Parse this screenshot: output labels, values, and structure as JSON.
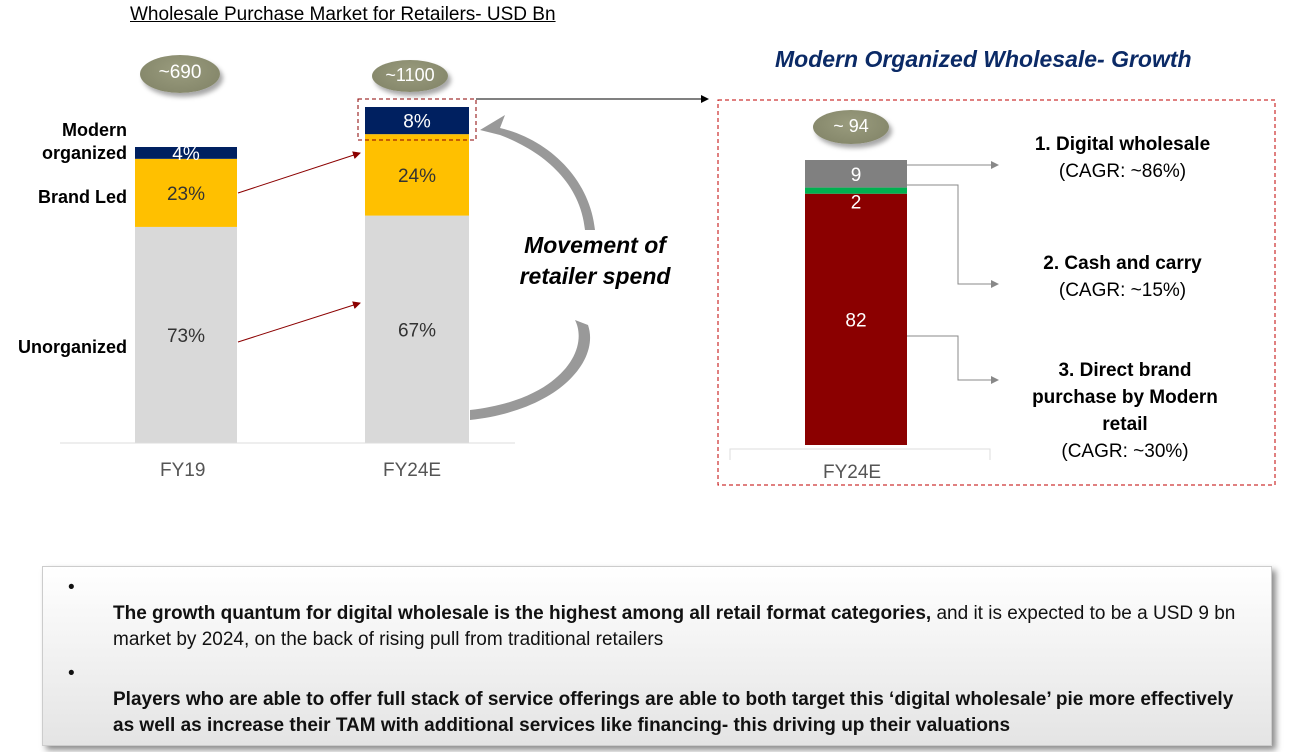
{
  "chart_data": [
    {
      "type": "bar",
      "stacked": true,
      "title": "Wholesale Purchase Market for Retailers- USD Bn",
      "categories": [
        "FY19",
        "FY24E"
      ],
      "totals": [
        "~690",
        "~1100"
      ],
      "series": [
        {
          "name": "Unorganized",
          "values": [
            73,
            67
          ],
          "labels": [
            "73%",
            "67%"
          ],
          "color": "#d9d9d9"
        },
        {
          "name": "Brand Led",
          "values": [
            23,
            24
          ],
          "labels": [
            "23%",
            "24%"
          ],
          "color": "#ffc000"
        },
        {
          "name": "Modern organized",
          "values": [
            4,
            8
          ],
          "labels": [
            "4%",
            "8%"
          ],
          "color": "#002060"
        }
      ],
      "series_labels": [
        "Modern organized",
        "Brand Led",
        "Unorganized"
      ],
      "annotation": "Movement of retailer spend"
    },
    {
      "type": "bar",
      "stacked": true,
      "title": "Modern Organized Wholesale- Growth",
      "categories": [
        "FY24E"
      ],
      "totals": [
        "~ 94"
      ],
      "series": [
        {
          "name": "Direct brand purchase by Modern retail",
          "values": [
            82
          ],
          "color": "#8b0000"
        },
        {
          "name": "Cash and carry",
          "values": [
            2
          ],
          "color": "#00b050"
        },
        {
          "name": "Digital wholesale",
          "values": [
            9
          ],
          "color": "#808080"
        }
      ],
      "legend": [
        {
          "title": "1. Digital wholesale",
          "cagr": "(CAGR: ~86%)"
        },
        {
          "title": "2. Cash  and carry",
          "cagr": "(CAGR: ~15%)"
        },
        {
          "title": "3. Direct brand purchase by Modern retail",
          "cagr": "(CAGR: ~30%)"
        }
      ]
    }
  ],
  "notes": [
    {
      "bold": "The growth quantum for digital wholesale is the highest among all retail format categories,",
      "rest": " and it is expected to be a USD 9 bn market by 2024, on the back of rising pull from traditional retailers"
    },
    {
      "bold": "Players who are able to offer full stack of service offerings are able to both target this ‘digital wholesale’ pie more effectively as well as increase their TAM with additional services like financing- this driving up their valuations",
      "rest": ""
    }
  ],
  "bullet": "•"
}
